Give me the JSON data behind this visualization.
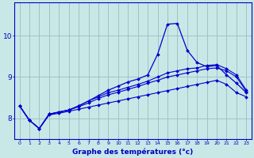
{
  "xlabel": "Graphe des températures (°c)",
  "x_hours": [
    0,
    1,
    2,
    3,
    4,
    5,
    6,
    7,
    8,
    9,
    10,
    11,
    12,
    13,
    14,
    15,
    16,
    17,
    18,
    19,
    20,
    21,
    22,
    23
  ],
  "line_flat": [
    8.3,
    7.95,
    7.75,
    8.08,
    8.12,
    8.17,
    8.22,
    8.27,
    8.32,
    8.37,
    8.42,
    8.47,
    8.52,
    8.57,
    8.62,
    8.67,
    8.72,
    8.77,
    8.82,
    8.87,
    8.92,
    8.82,
    8.62,
    8.52
  ],
  "line_mid1": [
    8.3,
    7.95,
    7.75,
    8.1,
    8.15,
    8.2,
    8.28,
    8.37,
    8.48,
    8.57,
    8.63,
    8.7,
    8.77,
    8.85,
    8.92,
    9.0,
    9.05,
    9.1,
    9.15,
    9.2,
    9.22,
    9.15,
    9.0,
    8.65
  ],
  "line_mid2": [
    8.3,
    7.95,
    7.75,
    8.1,
    8.15,
    8.2,
    8.3,
    8.42,
    8.52,
    8.62,
    8.68,
    8.75,
    8.82,
    8.9,
    9.0,
    9.1,
    9.15,
    9.2,
    9.22,
    9.28,
    9.3,
    9.2,
    9.05,
    8.68
  ],
  "line_spike": [
    8.3,
    7.95,
    7.75,
    8.1,
    8.15,
    8.2,
    8.3,
    8.42,
    8.55,
    8.68,
    8.78,
    8.88,
    8.95,
    9.05,
    9.55,
    10.28,
    10.3,
    9.65,
    9.35,
    9.25,
    9.28,
    9.05,
    8.85,
    8.62
  ],
  "line_color": "#0000cc",
  "bg_color": "#c8e8e8",
  "grid_color": "#9bbcbc",
  "axis_color": "#0000bb",
  "ylim": [
    7.5,
    10.8
  ],
  "yticks": [
    8,
    9,
    10
  ],
  "xlim": [
    -0.5,
    23.5
  ]
}
